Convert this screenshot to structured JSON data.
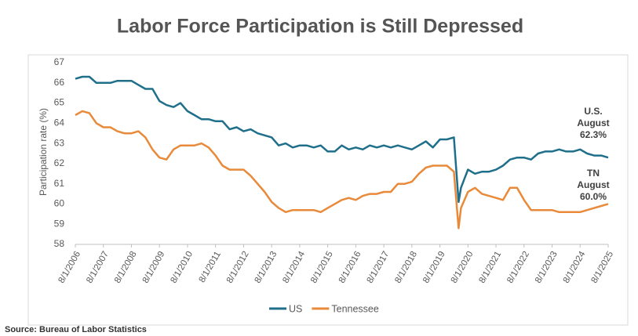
{
  "chart_data": {
    "type": "line",
    "title": "Labor Force Participation is Still Depressed",
    "y_label": "Participation rate (%)",
    "source": "Source: Bureau of Labor Statistics",
    "x": [
      "8/1/2006",
      "11/1/2006",
      "2/1/2007",
      "5/1/2007",
      "8/1/2007",
      "11/1/2007",
      "2/1/2008",
      "5/1/2008",
      "8/1/2008",
      "11/1/2008",
      "2/1/2009",
      "5/1/2009",
      "8/1/2009",
      "11/1/2009",
      "2/1/2010",
      "5/1/2010",
      "8/1/2010",
      "11/1/2010",
      "2/1/2011",
      "5/1/2011",
      "8/1/2011",
      "11/1/2011",
      "2/1/2012",
      "5/1/2012",
      "8/1/2012",
      "11/1/2012",
      "2/1/2013",
      "5/1/2013",
      "8/1/2013",
      "11/1/2013",
      "2/1/2014",
      "5/1/2014",
      "8/1/2014",
      "11/1/2014",
      "2/1/2015",
      "5/1/2015",
      "8/1/2015",
      "11/1/2015",
      "2/1/2016",
      "5/1/2016",
      "8/1/2016",
      "11/1/2016",
      "2/1/2017",
      "5/1/2017",
      "8/1/2017",
      "11/1/2017",
      "2/1/2018",
      "5/1/2018",
      "8/1/2018",
      "11/1/2018",
      "2/1/2019",
      "5/1/2019",
      "8/1/2019",
      "11/1/2019",
      "2/1/2020",
      "4/1/2020",
      "5/1/2020",
      "8/1/2020",
      "11/1/2020",
      "2/1/2021",
      "5/1/2021",
      "8/1/2021",
      "11/1/2021",
      "2/1/2022",
      "5/1/2022",
      "8/1/2022",
      "11/1/2022",
      "2/1/2023",
      "5/1/2023",
      "8/1/2023",
      "11/1/2023",
      "2/1/2024",
      "5/1/2024",
      "8/1/2024",
      "11/1/2024",
      "2/1/2025",
      "5/1/2025",
      "8/1/2025"
    ],
    "series": [
      {
        "name": "US",
        "color": "#1f6f8b",
        "values": [
          66.2,
          66.3,
          66.3,
          66.0,
          66.0,
          66.0,
          66.1,
          66.1,
          66.1,
          65.9,
          65.7,
          65.7,
          65.1,
          64.9,
          64.8,
          65.0,
          64.6,
          64.4,
          64.2,
          64.2,
          64.1,
          64.1,
          63.7,
          63.8,
          63.6,
          63.7,
          63.5,
          63.4,
          63.3,
          62.9,
          63.0,
          62.8,
          62.9,
          62.9,
          62.8,
          62.9,
          62.6,
          62.6,
          62.9,
          62.7,
          62.8,
          62.7,
          62.9,
          62.8,
          62.9,
          62.8,
          62.9,
          62.8,
          62.7,
          62.9,
          63.1,
          62.8,
          63.2,
          63.2,
          63.3,
          60.1,
          60.8,
          61.7,
          61.5,
          61.6,
          61.6,
          61.7,
          61.9,
          62.2,
          62.3,
          62.3,
          62.2,
          62.5,
          62.6,
          62.6,
          62.7,
          62.6,
          62.6,
          62.7,
          62.5,
          62.4,
          62.4,
          62.3
        ]
      },
      {
        "name": "Tennessee",
        "color": "#e98a3a",
        "values": [
          64.4,
          64.6,
          64.5,
          64.0,
          63.8,
          63.8,
          63.6,
          63.5,
          63.5,
          63.6,
          63.3,
          62.7,
          62.3,
          62.2,
          62.7,
          62.9,
          62.9,
          62.9,
          63.0,
          62.8,
          62.4,
          61.9,
          61.7,
          61.7,
          61.7,
          61.4,
          61.0,
          60.6,
          60.1,
          59.8,
          59.6,
          59.7,
          59.7,
          59.7,
          59.7,
          59.6,
          59.8,
          60.0,
          60.2,
          60.3,
          60.2,
          60.4,
          60.5,
          60.5,
          60.6,
          60.6,
          61.0,
          61.0,
          61.1,
          61.5,
          61.8,
          61.9,
          61.9,
          61.9,
          61.6,
          58.8,
          59.8,
          60.6,
          60.8,
          60.5,
          60.4,
          60.3,
          60.2,
          60.8,
          60.8,
          60.2,
          59.7,
          59.7,
          59.7,
          59.7,
          59.6,
          59.6,
          59.6,
          59.6,
          59.7,
          59.8,
          59.9,
          60.0
        ]
      }
    ],
    "annotations": [
      [
        "U.S.",
        "August",
        "62.3%"
      ],
      [
        "TN",
        "August",
        "60.0%"
      ]
    ],
    "xlim": [
      "8/1/2006",
      "8/1/2025"
    ],
    "xticks": [
      "8/1/2006",
      "8/1/2007",
      "8/1/2008",
      "8/1/2009",
      "8/1/2010",
      "8/1/2011",
      "8/1/2012",
      "8/1/2013",
      "8/1/2014",
      "8/1/2015",
      "8/1/2016",
      "8/1/2017",
      "8/1/2018",
      "8/1/2019",
      "8/1/2020",
      "8/1/2021",
      "8/1/2022",
      "8/1/2023",
      "8/1/2024",
      "8/1/2025"
    ],
    "ylim": [
      58,
      67
    ],
    "yticks": [
      58,
      59,
      60,
      61,
      62,
      63,
      64,
      65,
      66,
      67
    ],
    "legend": "bottom"
  }
}
